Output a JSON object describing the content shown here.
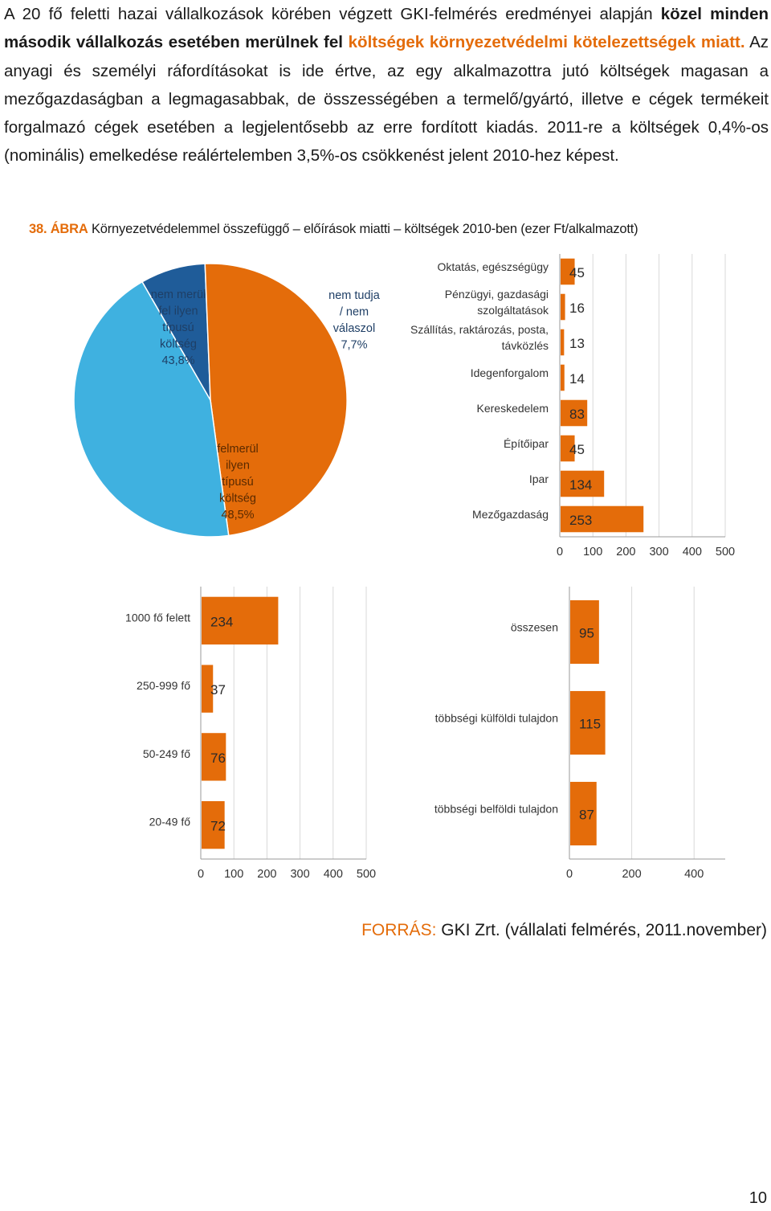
{
  "paragraph": {
    "p1": "A 20 fő feletti hazai  vállalkozások  körében végzett GKI-felmérés eredményei  alapján ",
    "p2": "közel minden második vállalkozás esetében merülnek fel",
    "p3": " ",
    "p4": "költségek környezetvédelmi kötelezettségek miatt.",
    "p5": " Az anyagi és személyi ráfordításokat is ide értve, az egy alkalmazottra jutó költségek magasan a mezőgazdaságban a legmagasabbak, de összességében a termelő/gyártó, illetve e cégek termékeit forgalmazó cégek esetében a legjelentősebb  az erre fordított kiadás.  2011-re a költségek  0,4%-os (nominális) emelkedése  reálértelemben 3,5%-os csökkenést jelent 2010-hez képest."
  },
  "figure": {
    "number": "38. ÁBRA",
    "title": "Környezetvédelemmel összefüggő – előírások miatti – költségek 2010-ben (ezer Ft/alkalmazott)"
  },
  "colors": {
    "orange": "#e46c0a",
    "light_blue": "#3fb1e0",
    "dark_blue": "#1f5c99",
    "grid": "#d9d9d9",
    "panel_bg": "#f2f2f2"
  },
  "chart_data": [
    {
      "type": "pie",
      "slices": [
        {
          "label": "nem tudja / nem válaszol 7,7%",
          "value": 7.7,
          "color": "#1f5c99"
        },
        {
          "label": "felmerül ilyen típusú költség 48,5%",
          "value": 48.5,
          "color": "#e46c0a"
        },
        {
          "label": "nem merül fel ilyen típusú költség 43,8%",
          "value": 43.8,
          "color": "#3fb1e0"
        }
      ]
    },
    {
      "type": "bar",
      "orientation": "horizontal",
      "categories": [
        "Oktatás, egészségügy",
        "Pénzügyi, gazdasági szolgáltatások",
        "Szállítás, raktározás, posta, távközlés",
        "Idegenforgalom",
        "Kereskedelem",
        "Építőipar",
        "Ipar",
        "Mezőgazdaság"
      ],
      "values": [
        45,
        16,
        13,
        14,
        83,
        45,
        134,
        253
      ],
      "xlim": [
        0,
        500
      ],
      "xticks": [
        "0",
        "100",
        "200",
        "300",
        "400",
        "500"
      ],
      "grid": true
    },
    {
      "type": "bar",
      "orientation": "horizontal",
      "categories": [
        "1000 fő felett",
        "250-999 fő",
        "50-249 fő",
        "20-49 fő"
      ],
      "values": [
        234,
        37,
        76,
        72
      ],
      "xlim": [
        0,
        500
      ],
      "xticks": [
        "0",
        "100",
        "200",
        "300",
        "400",
        "500"
      ],
      "grid": true
    },
    {
      "type": "bar",
      "orientation": "horizontal",
      "categories": [
        "összesen",
        "többségi külföldi tulajdon",
        "többségi belföldi tulajdon"
      ],
      "values": [
        95,
        115,
        87
      ],
      "xlim": [
        0,
        500
      ],
      "xticks": [
        "0",
        "200",
        "400"
      ],
      "grid": true
    }
  ],
  "source": {
    "label": "FORRÁS:",
    "text": " GKI Zrt. (vállalati felmérés, 2011.november)"
  },
  "page_number": "10"
}
